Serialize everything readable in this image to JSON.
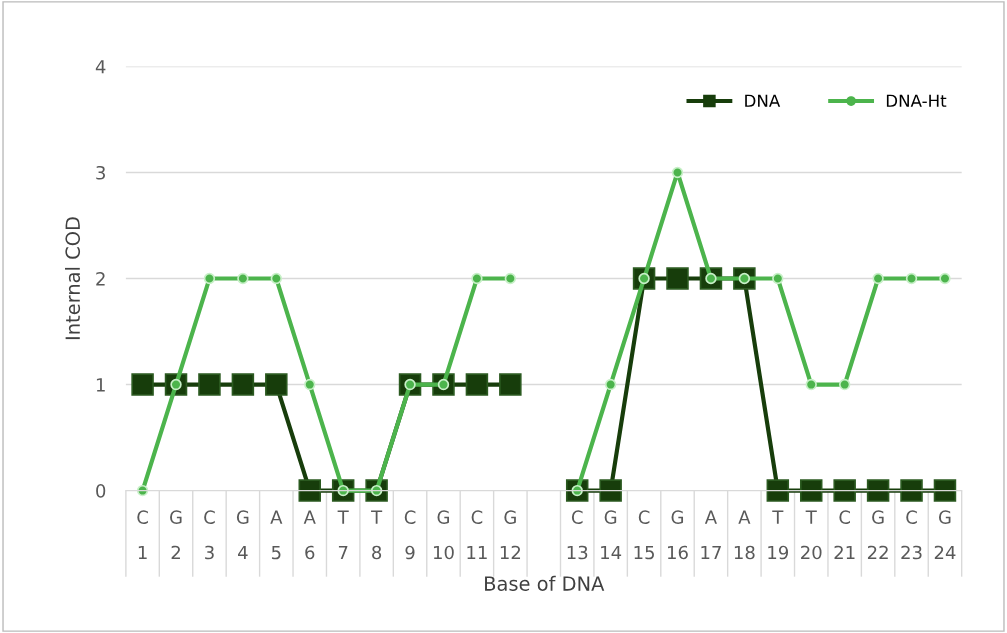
{
  "chart_data": {
    "type": "line",
    "xlabel": "Base of DNA",
    "ylabel": "Internal COD",
    "categories": [
      "C\n1",
      "G\n2",
      "C\n3",
      "G\n4",
      "A\n5",
      "A\n6",
      "T\n7",
      "T\n8",
      "C\n9",
      "G\n10",
      "C\n11",
      "G\n12",
      null,
      "C\n13",
      "G\n14",
      "C\n15",
      "G\n16",
      "A\n17",
      "A\n18",
      "T\n19",
      "T\n20",
      "C\n21",
      "G\n22",
      "C\n23",
      "G\n24"
    ],
    "series": [
      {
        "name": "DNA",
        "color": "#173d0b",
        "marker": "square",
        "values": [
          1,
          1,
          1,
          1,
          1,
          0,
          0,
          0,
          1,
          1,
          1,
          1,
          null,
          0,
          0,
          2,
          2,
          2,
          2,
          0,
          0,
          0,
          0,
          0,
          0
        ]
      },
      {
        "name": "DNA-Ht",
        "color": "#4cb44c",
        "marker": "circle",
        "values": [
          0,
          1,
          2,
          2,
          2,
          1,
          0,
          0,
          1,
          1,
          2,
          2,
          null,
          0,
          1,
          2,
          3,
          2,
          2,
          2,
          1,
          1,
          2,
          2,
          2
        ]
      }
    ],
    "ylim": [
      0,
      4
    ],
    "yticks": [
      0,
      1,
      2,
      3,
      4
    ],
    "grid": "y",
    "legend": "top right",
    "line_style": "solid"
  }
}
